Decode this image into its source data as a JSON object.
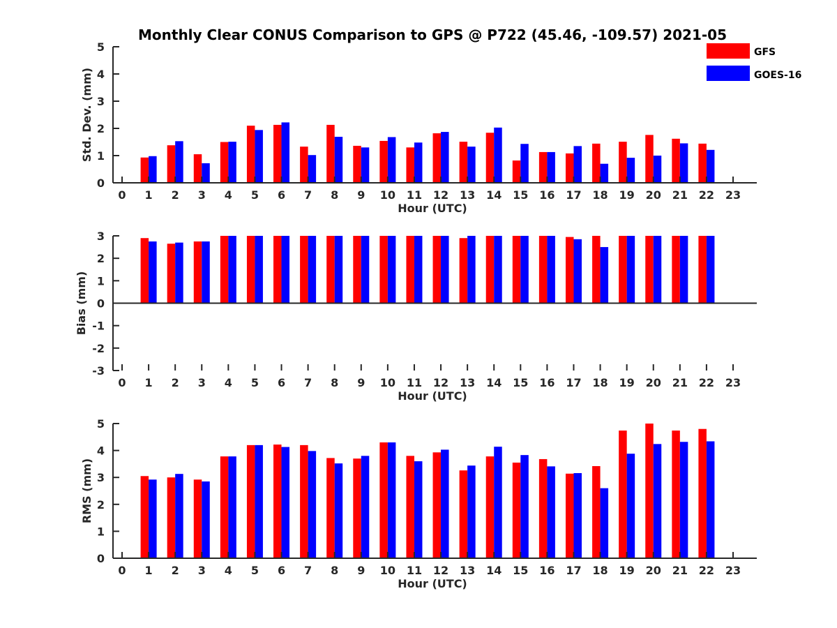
{
  "chart_data": {
    "title": "Monthly Clear CONUS Comparison to GPS @ P722 (45.46, -109.57) 2021-05",
    "type": "bar",
    "legend": {
      "placement": "top-right",
      "entries": [
        {
          "name": "GFS",
          "color": "#ff0000"
        },
        {
          "name": "GOES-16",
          "color": "#0000ff"
        }
      ]
    },
    "panels": [
      {
        "type": "bar",
        "xlabel": "Hour (UTC)",
        "ylabel": "Std. Dev. (mm)",
        "ylim": [
          0,
          5
        ],
        "yticks": [
          "0",
          "1",
          "2",
          "3",
          "4",
          "5"
        ],
        "xticks": [
          "0",
          "1",
          "2",
          "3",
          "4",
          "5",
          "6",
          "7",
          "8",
          "9",
          "10",
          "11",
          "12",
          "13",
          "14",
          "15",
          "16",
          "17",
          "18",
          "19",
          "20",
          "21",
          "22",
          "23"
        ],
        "x": [
          1,
          2,
          3,
          4,
          5,
          6,
          7,
          8,
          9,
          10,
          11,
          12,
          13,
          14,
          15,
          16,
          17,
          18,
          19,
          20,
          21,
          22
        ],
        "series": [
          {
            "name": "GFS",
            "values": [
              0.93,
              1.38,
              1.05,
              1.5,
              2.1,
              2.13,
              1.33,
              2.13,
              1.36,
              1.54,
              1.3,
              1.82,
              1.51,
              1.84,
              0.82,
              1.13,
              1.08,
              1.44,
              1.51,
              1.76,
              1.62,
              1.44
            ]
          },
          {
            "name": "GOES-16",
            "values": [
              0.98,
              1.53,
              0.72,
              1.51,
              1.94,
              2.22,
              1.02,
              1.69,
              1.3,
              1.68,
              1.48,
              1.87,
              1.33,
              2.03,
              1.43,
              1.13,
              1.35,
              0.7,
              0.92,
              1.0,
              1.45,
              1.21
            ]
          }
        ]
      },
      {
        "type": "bar",
        "xlabel": "Hour (UTC)",
        "ylabel": "Bias (mm)",
        "ylim": [
          -3,
          3
        ],
        "yticks": [
          "-3",
          "-2",
          "-1",
          "0",
          "1",
          "2",
          "3"
        ],
        "xticks": [
          "0",
          "1",
          "2",
          "3",
          "4",
          "5",
          "6",
          "7",
          "8",
          "9",
          "10",
          "11",
          "12",
          "13",
          "14",
          "15",
          "16",
          "17",
          "18",
          "19",
          "20",
          "21",
          "22",
          "23"
        ],
        "x": [
          1,
          2,
          3,
          4,
          5,
          6,
          7,
          8,
          9,
          10,
          11,
          12,
          13,
          14,
          15,
          16,
          17,
          18,
          19,
          20,
          21,
          22
        ],
        "series": [
          {
            "name": "GFS",
            "values": [
              2.9,
              2.65,
              2.75,
              3.0,
              3.0,
              3.0,
              3.0,
              3.0,
              3.0,
              3.0,
              3.0,
              3.0,
              2.9,
              3.0,
              3.0,
              3.0,
              2.95,
              3.0,
              3.0,
              3.0,
              3.0,
              3.0
            ]
          },
          {
            "name": "GOES-16",
            "values": [
              2.75,
              2.7,
              2.75,
              3.0,
              3.0,
              3.0,
              3.0,
              3.0,
              3.0,
              3.0,
              3.0,
              3.0,
              3.0,
              3.0,
              3.0,
              3.0,
              2.85,
              2.5,
              3.0,
              3.0,
              3.0,
              3.0
            ]
          }
        ]
      },
      {
        "type": "bar",
        "xlabel": "Hour (UTC)",
        "ylabel": "RMS (mm)",
        "ylim": [
          0,
          5
        ],
        "yticks": [
          "0",
          "1",
          "2",
          "3",
          "4",
          "5"
        ],
        "xticks": [
          "0",
          "1",
          "2",
          "3",
          "4",
          "5",
          "6",
          "7",
          "8",
          "9",
          "10",
          "11",
          "12",
          "13",
          "14",
          "15",
          "16",
          "17",
          "18",
          "19",
          "20",
          "21",
          "22",
          "23"
        ],
        "x": [
          1,
          2,
          3,
          4,
          5,
          6,
          7,
          8,
          9,
          10,
          11,
          12,
          13,
          14,
          15,
          16,
          17,
          18,
          19,
          20,
          21,
          22
        ],
        "series": [
          {
            "name": "GFS",
            "values": [
              3.05,
              3.0,
              2.92,
              3.78,
              4.2,
              4.22,
              4.2,
              3.72,
              3.7,
              4.3,
              3.8,
              3.93,
              3.26,
              3.78,
              3.55,
              3.68,
              3.14,
              3.42,
              4.74,
              5.0,
              4.74,
              4.8
            ]
          },
          {
            "name": "GOES-16",
            "values": [
              2.92,
              3.13,
              2.85,
              3.78,
              4.2,
              4.13,
              3.98,
              3.52,
              3.8,
              4.3,
              3.6,
              4.03,
              3.44,
              4.14,
              3.83,
              3.41,
              3.16,
              2.6,
              3.88,
              4.24,
              4.32,
              4.34
            ]
          }
        ]
      }
    ]
  }
}
